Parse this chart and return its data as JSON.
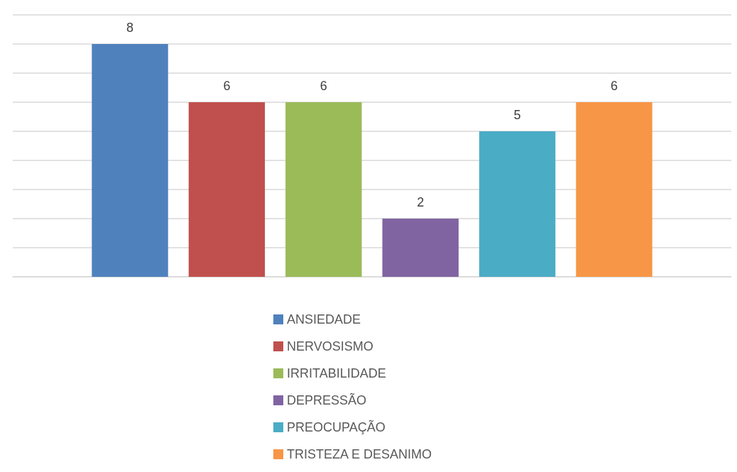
{
  "chart_data": {
    "type": "bar",
    "categories": [
      null
    ],
    "series": [
      {
        "name": "ANSIEDADE",
        "color": "#4f81bd",
        "values": [
          8
        ]
      },
      {
        "name": "NERVOSISMO",
        "color": "#c0504d",
        "values": [
          6
        ]
      },
      {
        "name": "IRRITABILIDADE",
        "color": "#9bbb59",
        "values": [
          6
        ]
      },
      {
        "name": "DEPRESSÃO",
        "color": "#8064a2",
        "values": [
          2
        ]
      },
      {
        "name": "PREOCUPAÇÃO",
        "color": "#4bacc6",
        "values": [
          5
        ]
      },
      {
        "name": "TRISTEZA E DESANIMO",
        "color": "#f79646",
        "values": [
          6
        ]
      }
    ],
    "ylim": [
      0,
      9
    ],
    "yticks": [
      0,
      1,
      2,
      3,
      4,
      5,
      6,
      7,
      8,
      9
    ],
    "tick_labels": false,
    "grid": "y",
    "data_labels": true,
    "legend": "bottom"
  }
}
